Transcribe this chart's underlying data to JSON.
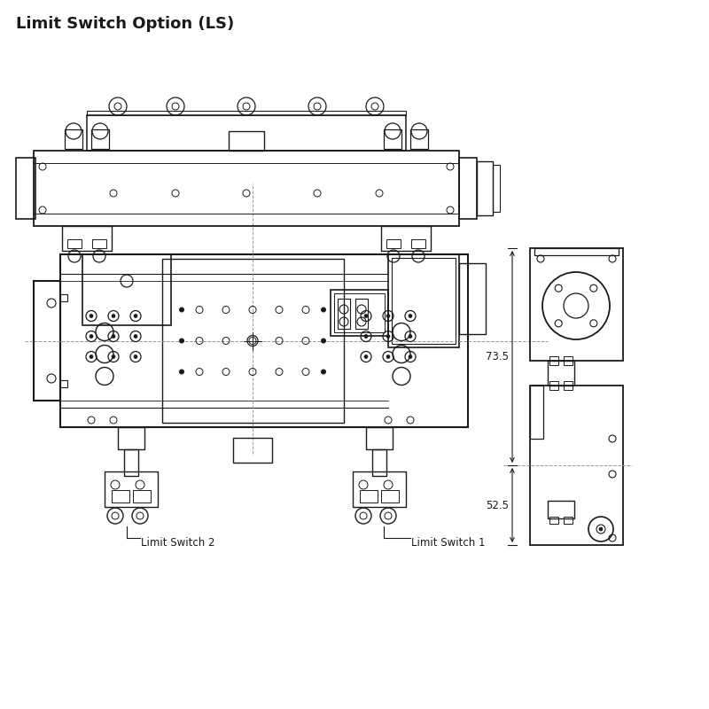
{
  "title": "Limit Switch Option (LS)",
  "title_fontsize": 13,
  "title_fontweight": "bold",
  "bg_color": "#ffffff",
  "line_color": "#1a1a1a",
  "dashed_color": "#999999",
  "label_ls2": "Limit Switch 2",
  "label_ls1": "Limit Switch 1",
  "dim_73_5": "73.5",
  "dim_52_5": "52.5"
}
